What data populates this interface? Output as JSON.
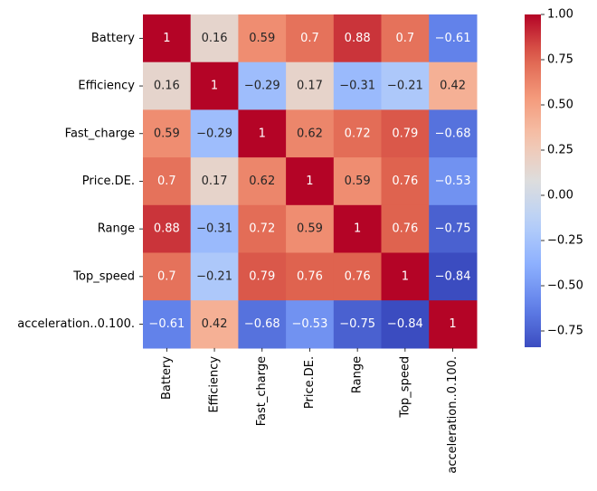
{
  "chart_data": {
    "type": "heatmap",
    "title": "",
    "xlabel": "",
    "ylabel": "",
    "labels": [
      "Battery",
      "Efficiency",
      "Fast_charge",
      "Price.DE.",
      "Range",
      "Top_speed",
      "acceleration..0.100."
    ],
    "matrix": [
      [
        1,
        0.16,
        0.59,
        0.7,
        0.88,
        0.7,
        -0.61
      ],
      [
        0.16,
        1,
        -0.29,
        0.17,
        -0.31,
        -0.21,
        0.42
      ],
      [
        0.59,
        -0.29,
        1,
        0.62,
        0.72,
        0.79,
        -0.68
      ],
      [
        0.7,
        0.17,
        0.62,
        1,
        0.59,
        0.76,
        -0.53
      ],
      [
        0.88,
        -0.31,
        0.72,
        0.59,
        1,
        0.76,
        -0.75
      ],
      [
        0.7,
        -0.21,
        0.79,
        0.76,
        0.76,
        1,
        -0.84
      ],
      [
        -0.61,
        0.42,
        -0.68,
        -0.53,
        -0.75,
        -0.84,
        1
      ]
    ],
    "colormap": "coolwarm",
    "vmin": -0.84,
    "vmax": 1.0,
    "annotations": true,
    "colorbar": {
      "ticks": [
        1.0,
        0.75,
        0.5,
        0.25,
        0.0,
        -0.25,
        -0.5,
        -0.75
      ],
      "tick_labels": [
        "1.00",
        "0.75",
        "0.50",
        "0.25",
        "0.00",
        "−0.25",
        "−0.50",
        "−0.75"
      ]
    }
  }
}
